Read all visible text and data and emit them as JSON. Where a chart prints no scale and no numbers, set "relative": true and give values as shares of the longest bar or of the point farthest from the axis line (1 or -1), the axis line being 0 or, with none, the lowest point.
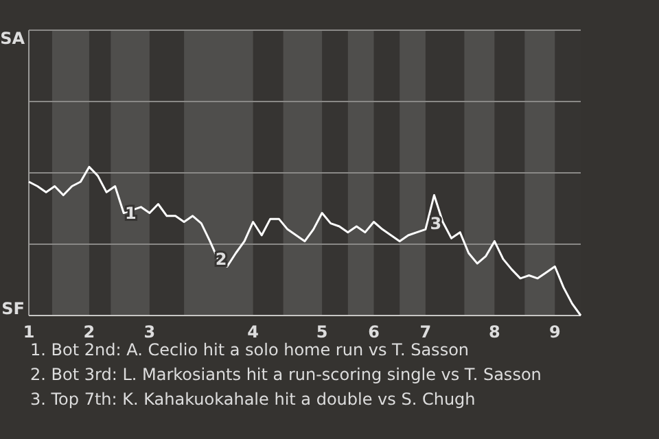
{
  "chart_data": {
    "type": "line",
    "relative": true,
    "categories": [
      "1",
      null,
      null,
      null,
      null,
      null,
      null,
      "2",
      null,
      null,
      null,
      null,
      null,
      null,
      "3",
      null,
      null,
      null,
      null,
      null,
      null,
      null,
      null,
      null,
      null,
      null,
      "4",
      null,
      null,
      null,
      null,
      null,
      null,
      null,
      "5",
      null,
      null,
      null,
      null,
      null,
      "6",
      null,
      null,
      null,
      null,
      null,
      "7",
      null,
      null,
      null,
      null,
      null,
      null,
      null,
      "8",
      null,
      null,
      null,
      null,
      null,
      null,
      "9",
      null,
      null,
      null
    ],
    "marker": "none",
    "line_style": "solid",
    "ref_lines": [
      {
        "axis": "y",
        "value": 0.48,
        "color": "#8a8987"
      },
      {
        "axis": "y",
        "value": 0.96,
        "color": "#8a8987"
      },
      {
        "axis": "y",
        "value": 1.44,
        "color": "#8a8987"
      },
      {
        "axis": "y",
        "value": 1.92,
        "color": "#8a8987"
      }
    ],
    "series": [
      {
        "color": "#ffffff",
        "values": [
          0.9,
          0.87,
          0.83,
          0.87,
          0.81,
          0.87,
          0.9,
          1,
          0.94,
          0.83,
          0.87,
          0.69,
          0.71,
          0.73,
          0.69,
          0.75,
          0.67,
          0.67,
          0.63,
          0.67,
          0.62,
          0.5,
          0.37,
          0.33,
          0.42,
          0.5,
          0.63,
          0.54,
          0.65,
          0.65,
          0.58,
          0.54,
          0.5,
          0.58,
          0.69,
          0.62,
          0.6,
          0.56,
          0.6,
          0.56,
          0.63,
          0.58,
          0.54,
          0.5,
          0.54,
          0.56,
          0.58,
          0.81,
          0.63,
          0.52,
          0.56,
          0.42,
          0.35,
          0.4,
          0.5,
          0.38,
          0.31,
          0.25,
          0.27,
          0.25,
          0.29,
          0.33,
          0.19,
          0.08,
          0
        ]
      }
    ],
    "annotations": [
      "SA",
      "SF",
      {
        "text": "1",
        "y": 0.69
      },
      {
        "text": "2",
        "y": 0.38
      },
      {
        "text": "3",
        "y": 0.62
      },
      "1. Bot 2nd: A. Ceclio hit a solo home run vs T. Sasson",
      "2. Bot 3rd: L. Markosiants hit a run-scoring single vs T. Sasson",
      "3. Top 7th: K. Kahakuokahale hit a double vs S. Chugh"
    ]
  }
}
